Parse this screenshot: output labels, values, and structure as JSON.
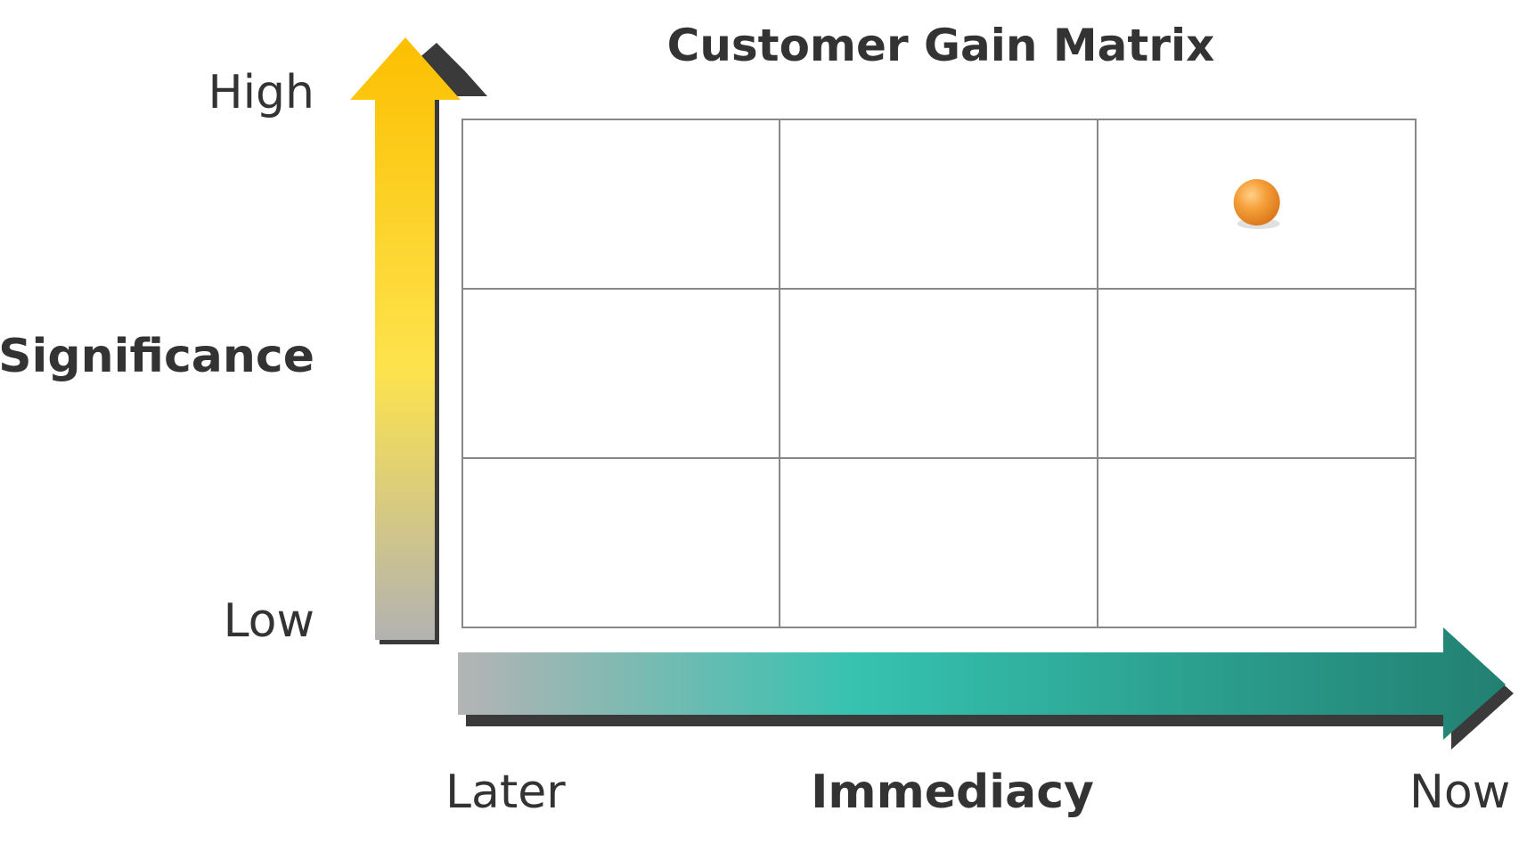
{
  "title": "Customer Gain Matrix",
  "y_axis": {
    "label": "Significance",
    "high": "High",
    "low": "Low"
  },
  "x_axis": {
    "label": "Immediacy",
    "start": "Later",
    "end": "Now"
  },
  "grid": {
    "rows": 3,
    "cols": 3
  },
  "marker": {
    "row": 0,
    "col": 2,
    "color": "#f39a30"
  },
  "colors": {
    "y_arrow_top": "#fcbf00",
    "y_arrow_mid": "#fde34d",
    "y_arrow_bottom": "#b2b2b2",
    "x_arrow_start": "#b4b4b4",
    "x_arrow_mid": "#36c2b0",
    "x_arrow_end": "#228071",
    "grid_line": "#888888"
  }
}
